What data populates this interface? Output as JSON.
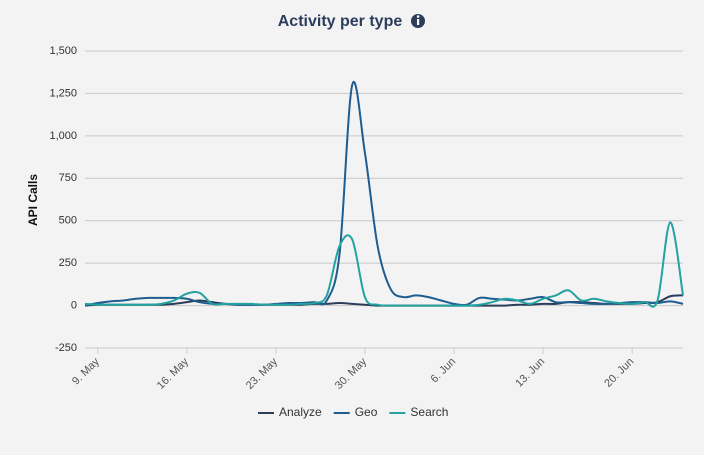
{
  "chart_data": {
    "type": "line",
    "title": "Activity per type",
    "y_label": "API Calls",
    "categories": [
      null,
      "9. May",
      null,
      null,
      null,
      null,
      null,
      null,
      "16. May",
      null,
      null,
      null,
      null,
      null,
      null,
      "23. May",
      null,
      null,
      null,
      null,
      null,
      null,
      "30. May",
      null,
      null,
      null,
      null,
      null,
      null,
      "6. Jun",
      null,
      null,
      null,
      null,
      null,
      null,
      "13. Jun",
      null,
      null,
      null,
      null,
      null,
      null,
      "20. Jun",
      null,
      null,
      null,
      null
    ],
    "series": [
      {
        "name": "Analyze",
        "color": "#2b3d5b",
        "values": [
          0,
          5,
          5,
          5,
          5,
          5,
          5,
          10,
          20,
          30,
          20,
          10,
          5,
          5,
          5,
          5,
          5,
          5,
          10,
          10,
          15,
          10,
          5,
          0,
          0,
          0,
          0,
          0,
          0,
          0,
          0,
          0,
          0,
          0,
          5,
          5,
          10,
          10,
          20,
          20,
          15,
          10,
          10,
          10,
          15,
          20,
          55,
          60
        ]
      },
      {
        "name": "Geo",
        "color": "#1f5c8f",
        "values": [
          0,
          15,
          25,
          30,
          40,
          45,
          45,
          45,
          40,
          20,
          10,
          10,
          5,
          5,
          5,
          10,
          15,
          15,
          20,
          30,
          300,
          1300,
          900,
          350,
          100,
          50,
          60,
          50,
          30,
          10,
          5,
          45,
          40,
          35,
          30,
          40,
          50,
          20,
          20,
          15,
          10,
          10,
          15,
          20,
          20,
          15,
          25,
          10
        ]
      },
      {
        "name": "Search",
        "color": "#22a3a0",
        "values": [
          10,
          5,
          5,
          5,
          5,
          5,
          10,
          30,
          70,
          75,
          10,
          10,
          10,
          10,
          5,
          5,
          5,
          10,
          15,
          60,
          350,
          390,
          50,
          5,
          0,
          0,
          0,
          0,
          0,
          0,
          0,
          5,
          20,
          40,
          30,
          10,
          40,
          60,
          90,
          30,
          40,
          25,
          15,
          10,
          20,
          30,
          490,
          60
        ]
      }
    ],
    "ylim": [
      -250,
      1500
    ],
    "yticks": [
      -250,
      0,
      250,
      500,
      750,
      {
        "value": 1000,
        "label": "1,000"
      },
      {
        "value": 1250,
        "label": "1,250"
      },
      {
        "value": 1500,
        "label": "1,500"
      }
    ],
    "grid": true,
    "legend": "bottom"
  }
}
